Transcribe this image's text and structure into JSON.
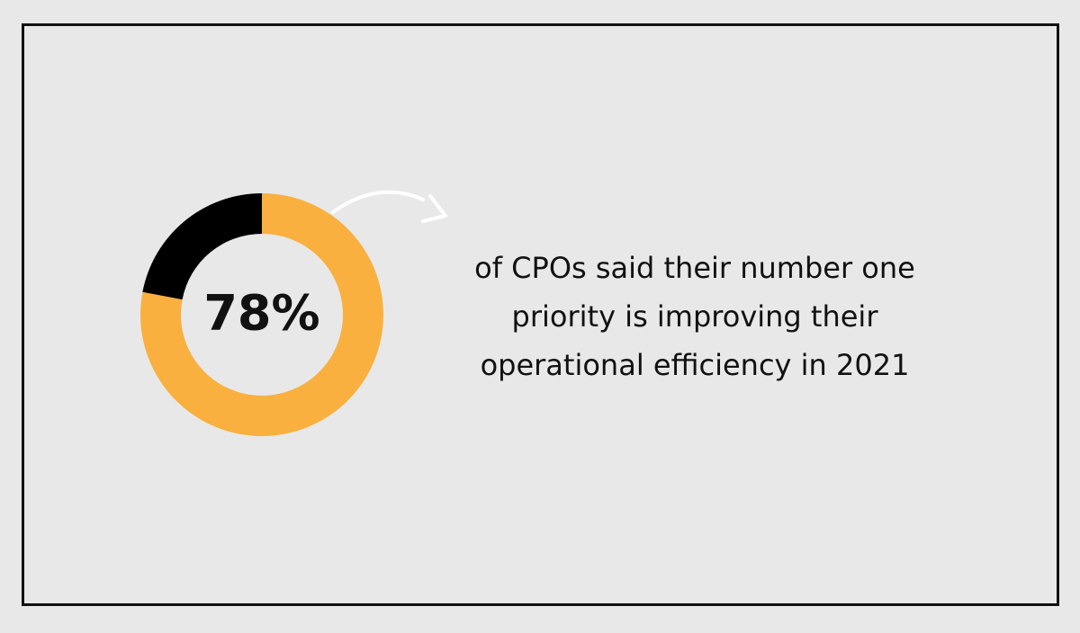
{
  "chart_data": {
    "type": "donut",
    "values": [
      78,
      22
    ],
    "value_labels": [
      "78%",
      null
    ],
    "colors": [
      "#f9b03f",
      "#000000"
    ],
    "caption": [
      "of CPOs said their number one",
      "priority is improving their",
      "operational efficiency in 2021"
    ]
  }
}
